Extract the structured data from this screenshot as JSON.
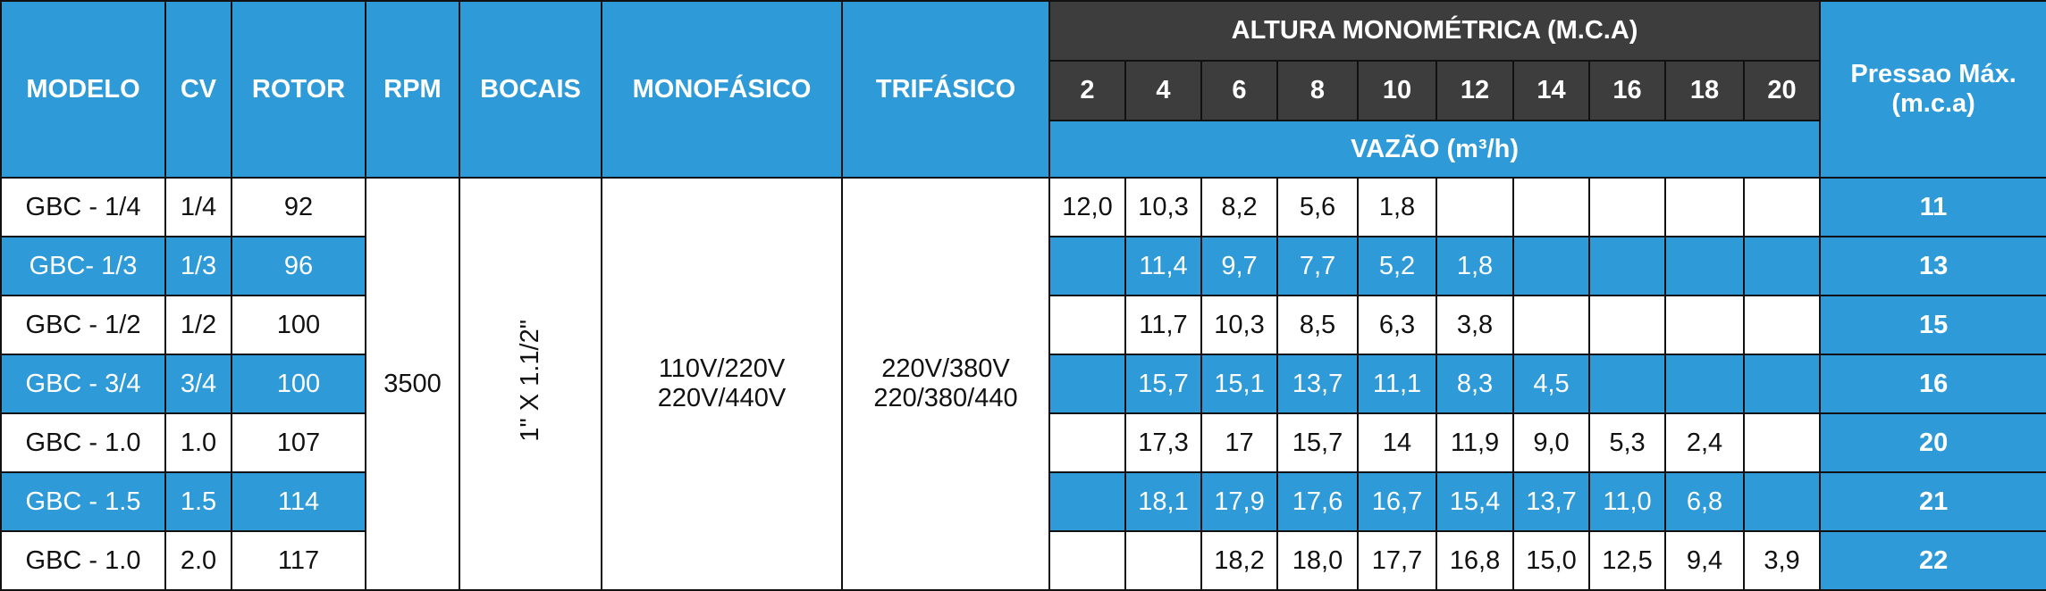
{
  "table": {
    "headers": {
      "modelo": "MODELO",
      "cv": "CV",
      "rotor": "ROTOR",
      "rpm": "RPM",
      "bocais": "BOCAIS",
      "monofasico": "MONOFÁSICO",
      "trifasico": "TRIFÁSICO",
      "altura": "ALTURA MONOMÉTRICA (M.C.A)",
      "heights": [
        "2",
        "4",
        "6",
        "8",
        "10",
        "12",
        "14",
        "16",
        "18",
        "20"
      ],
      "vazao": "VAZÃO (m³/h)",
      "pressao": [
        "Pressao Máx.",
        "(m.c.a)"
      ]
    },
    "rpm": "3500",
    "bocais": "1\" X 1.1/2\"",
    "monofasico": [
      "110V/220V",
      "220V/440V"
    ],
    "trifasico": [
      "220V/380V",
      "220/380/440"
    ],
    "rows": [
      {
        "modelo": "GBC - 1/4",
        "cv": "1/4",
        "rotor": "92",
        "flows": [
          "12,0",
          "10,3",
          "8,2",
          "5,6",
          "1,8",
          null,
          null,
          null,
          null,
          null
        ],
        "pressao": "11"
      },
      {
        "modelo": "GBC- 1/3",
        "cv": "1/3",
        "rotor": "96",
        "flows": [
          null,
          "11,4",
          "9,7",
          "7,7",
          "5,2",
          "1,8",
          null,
          null,
          null,
          null
        ],
        "pressao": "13"
      },
      {
        "modelo": "GBC - 1/2",
        "cv": "1/2",
        "rotor": "100",
        "flows": [
          null,
          "11,7",
          "10,3",
          "8,5",
          "6,3",
          "3,8",
          null,
          null,
          null,
          null
        ],
        "pressao": "15"
      },
      {
        "modelo": "GBC - 3/4",
        "cv": "3/4",
        "rotor": "100",
        "flows": [
          null,
          "15,7",
          "15,1",
          "13,7",
          "11,1",
          "8,3",
          "4,5",
          null,
          null,
          null
        ],
        "pressao": "16"
      },
      {
        "modelo": "GBC - 1.0",
        "cv": "1.0",
        "rotor": "107",
        "flows": [
          null,
          "17,3",
          "17",
          "15,7",
          "14",
          "11,9",
          "9,0",
          "5,3",
          "2,4",
          null
        ],
        "pressao": "20"
      },
      {
        "modelo": "GBC - 1.5",
        "cv": "1.5",
        "rotor": "114",
        "flows": [
          null,
          "18,1",
          "17,9",
          "17,6",
          "16,7",
          "15,4",
          "13,7",
          "11,0",
          "6,8",
          null
        ],
        "pressao": "21"
      },
      {
        "modelo": "GBC - 1.0",
        "cv": "2.0",
        "rotor": "117",
        "flows": [
          null,
          null,
          "18,2",
          "18,0",
          "17,7",
          "16,8",
          "15,0",
          "12,5",
          "9,4",
          "3,9"
        ],
        "pressao": "22"
      }
    ]
  }
}
